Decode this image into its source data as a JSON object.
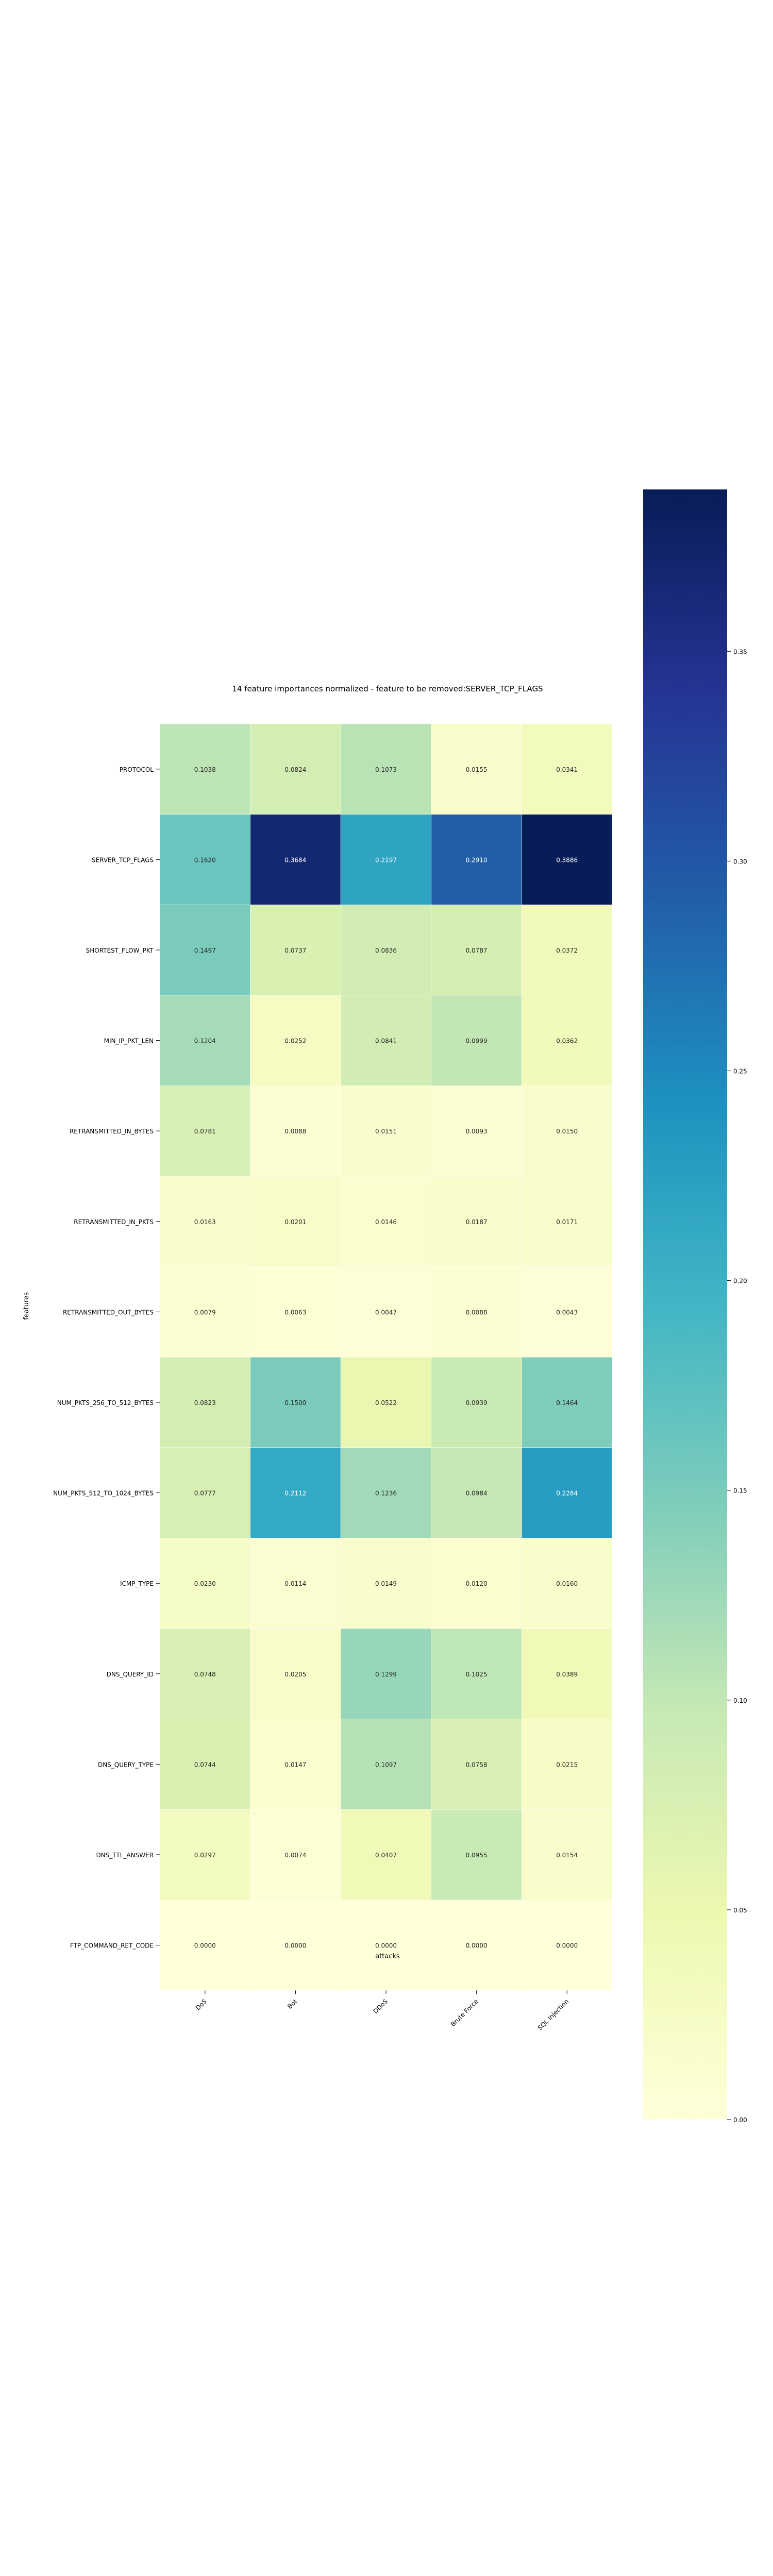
{
  "chart_data": {
    "type": "heatmap",
    "title": "14 feature importances normalized - feature to be removed:SERVER_TCP_FLAGS",
    "xlabel": "attacks",
    "ylabel": "features",
    "colormap": "YlGnBu",
    "x_categories": [
      "DoS",
      "Bot",
      "DDoS",
      "Brute Force",
      "SQL Injection"
    ],
    "y_categories": [
      "PROTOCOL",
      "SERVER_TCP_FLAGS",
      "SHORTEST_FLOW_PKT",
      "MIN_IP_PKT_LEN",
      "RETRANSMITTED_IN_BYTES",
      "RETRANSMITTED_IN_PKTS",
      "RETRANSMITTED_OUT_BYTES",
      "NUM_PKTS_256_TO_512_BYTES",
      "NUM_PKTS_512_TO_1024_BYTES",
      "ICMP_TYPE",
      "DNS_QUERY_ID",
      "DNS_QUERY_TYPE",
      "DNS_TTL_ANSWER",
      "FTP_COMMAND_RET_CODE"
    ],
    "values": [
      [
        0.1038,
        0.0824,
        0.1073,
        0.0155,
        0.0341
      ],
      [
        0.162,
        0.3684,
        0.2197,
        0.291,
        0.3886
      ],
      [
        0.1497,
        0.0737,
        0.0836,
        0.0787,
        0.0372
      ],
      [
        0.1204,
        0.0252,
        0.0841,
        0.0999,
        0.0362
      ],
      [
        0.0781,
        0.0088,
        0.0151,
        0.0093,
        0.015
      ],
      [
        0.0163,
        0.0201,
        0.0146,
        0.0187,
        0.0171
      ],
      [
        0.0079,
        0.0063,
        0.0047,
        0.0088,
        0.0043
      ],
      [
        0.0823,
        0.15,
        0.0522,
        0.0939,
        0.1464
      ],
      [
        0.0777,
        0.2112,
        0.1236,
        0.0984,
        0.2284
      ],
      [
        0.023,
        0.0114,
        0.0149,
        0.012,
        0.016
      ],
      [
        0.0748,
        0.0205,
        0.1299,
        0.1025,
        0.0389
      ],
      [
        0.0744,
        0.0147,
        0.1097,
        0.0758,
        0.0215
      ],
      [
        0.0297,
        0.0074,
        0.0407,
        0.0955,
        0.0154
      ],
      [
        0.0,
        0.0,
        0.0,
        0.0,
        0.0
      ]
    ],
    "value_format": "4 decimals",
    "colorbar": {
      "min": 0.0,
      "max": 0.3886,
      "ticks": [
        "0.00",
        "0.05",
        "0.10",
        "0.15",
        "0.20",
        "0.25",
        "0.30",
        "0.35"
      ]
    }
  }
}
